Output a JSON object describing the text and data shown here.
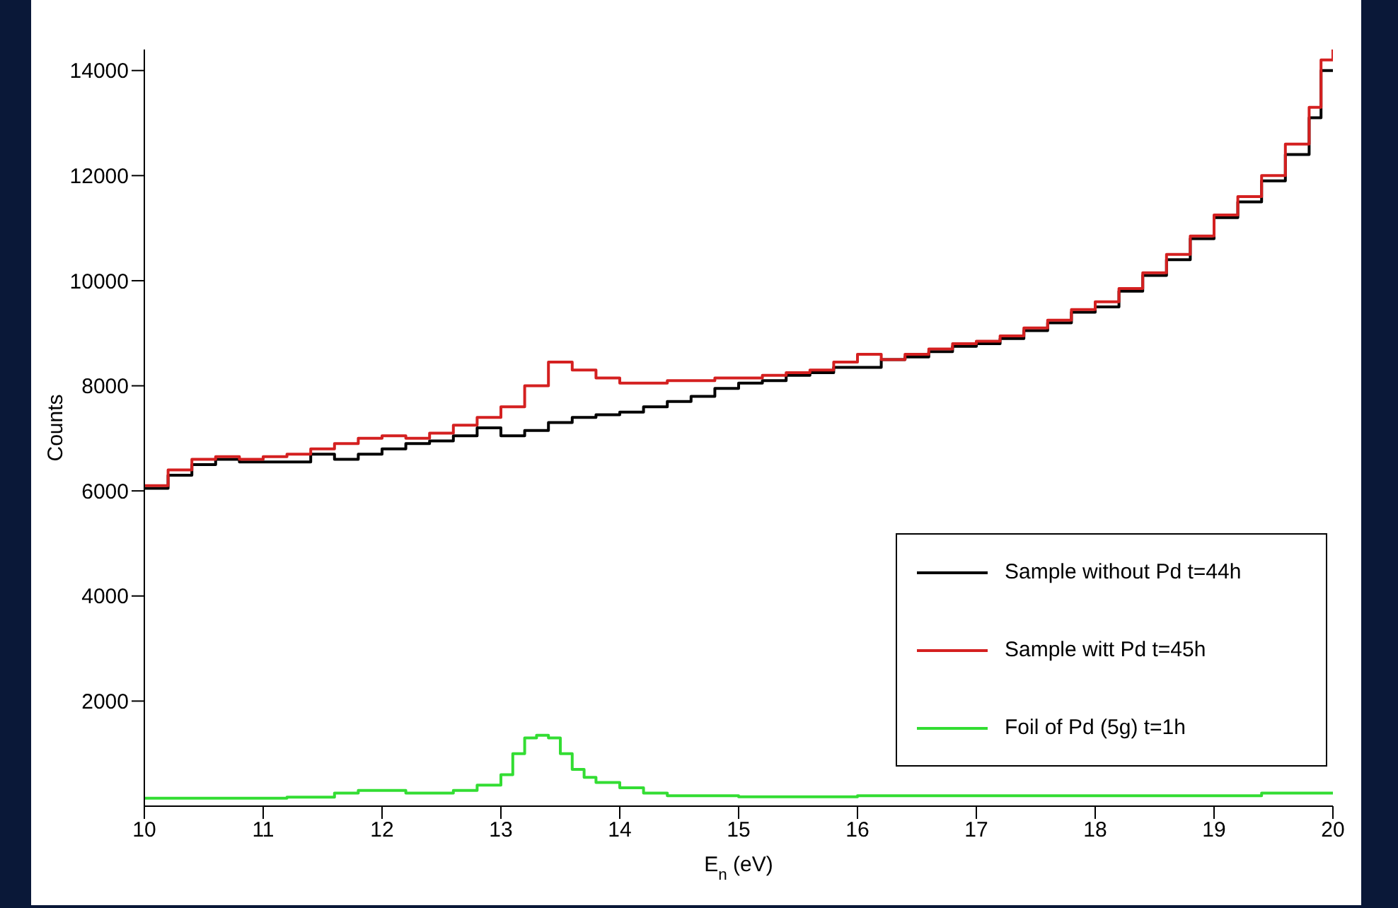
{
  "chart_data": {
    "type": "step",
    "xlabel": "E$_{n}$ (eV)",
    "ylabel": "Counts",
    "xlim": [
      10,
      20
    ],
    "xticks": [
      10,
      11,
      12,
      13,
      14,
      15,
      16,
      17,
      18,
      19,
      20
    ],
    "ylim": [
      0,
      14400
    ],
    "yticks": [
      2000,
      4000,
      6000,
      8000,
      10000,
      12000,
      14000
    ],
    "grid": false,
    "legend": "bottom right",
    "line_style": "solid",
    "marker": "none",
    "series": [
      {
        "name": "Sample without Pd t=44h",
        "color": "#000000",
        "x": [
          10,
          10.2,
          10.4,
          10.6,
          10.8,
          11,
          11.2,
          11.4,
          11.6,
          11.8,
          12,
          12.2,
          12.4,
          12.6,
          12.8,
          13,
          13.2,
          13.4,
          13.6,
          13.8,
          14,
          14.2,
          14.4,
          14.6,
          14.8,
          15,
          15.2,
          15.4,
          15.6,
          15.8,
          16,
          16.2,
          16.4,
          16.6,
          16.8,
          17,
          17.2,
          17.4,
          17.6,
          17.8,
          18,
          18.2,
          18.4,
          18.6,
          18.8,
          19,
          19.2,
          19.4,
          19.6,
          19.8,
          19.9,
          20
        ],
        "values": [
          6050,
          6300,
          6500,
          6600,
          6550,
          6550,
          6550,
          6700,
          6600,
          6700,
          6800,
          6900,
          6950,
          7050,
          7200,
          7050,
          7150,
          7300,
          7400,
          7450,
          7500,
          7600,
          7700,
          7800,
          7950,
          8050,
          8100,
          8200,
          8250,
          8350,
          8350,
          8500,
          8550,
          8650,
          8750,
          8800,
          8900,
          9050,
          9200,
          9400,
          9500,
          9800,
          10100,
          10400,
          10800,
          11200,
          11500,
          11900,
          12400,
          13100,
          14000,
          14000
        ]
      },
      {
        "name": "Sample witt Pd t=45h",
        "color": "#d42020",
        "x": [
          10,
          10.2,
          10.4,
          10.6,
          10.8,
          11,
          11.2,
          11.4,
          11.6,
          11.8,
          12,
          12.2,
          12.4,
          12.6,
          12.8,
          13,
          13.2,
          13.4,
          13.6,
          13.8,
          14,
          14.2,
          14.4,
          14.6,
          14.8,
          15,
          15.2,
          15.4,
          15.6,
          15.8,
          16,
          16.2,
          16.4,
          16.6,
          16.8,
          17,
          17.2,
          17.4,
          17.6,
          17.8,
          18,
          18.2,
          18.4,
          18.6,
          18.8,
          19,
          19.2,
          19.4,
          19.6,
          19.8,
          19.9,
          20
        ],
        "values": [
          6100,
          6400,
          6600,
          6650,
          6600,
          6650,
          6700,
          6800,
          6900,
          7000,
          7050,
          7000,
          7100,
          7250,
          7400,
          7600,
          8000,
          8450,
          8300,
          8150,
          8050,
          8050,
          8100,
          8100,
          8150,
          8150,
          8200,
          8250,
          8300,
          8450,
          8600,
          8500,
          8600,
          8700,
          8800,
          8850,
          8950,
          9100,
          9250,
          9450,
          9600,
          9850,
          10150,
          10500,
          10850,
          11250,
          11600,
          12000,
          12600,
          13300,
          14200,
          14400
        ]
      },
      {
        "name": "Foil of Pd (5g) t=1h",
        "color": "#33dd33",
        "x": [
          10,
          10.4,
          10.8,
          11.2,
          11.6,
          11.8,
          12,
          12.2,
          12.4,
          12.6,
          12.8,
          13,
          13.1,
          13.2,
          13.3,
          13.4,
          13.5,
          13.6,
          13.7,
          13.8,
          14,
          14.2,
          14.4,
          15,
          16,
          17,
          18,
          19,
          19.4,
          19.6,
          20
        ],
        "values": [
          150,
          150,
          150,
          170,
          250,
          300,
          300,
          250,
          250,
          300,
          400,
          600,
          1000,
          1300,
          1350,
          1300,
          1000,
          700,
          550,
          450,
          350,
          250,
          200,
          180,
          200,
          200,
          200,
          200,
          250,
          250,
          250
        ]
      }
    ]
  }
}
